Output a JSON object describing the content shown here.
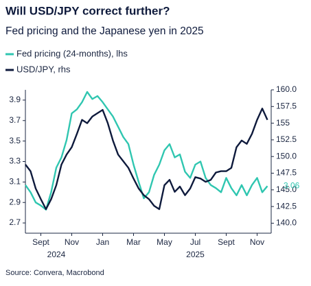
{
  "chart_data": {
    "type": "line",
    "title": "Will USD/JPY correct further?",
    "subtitle": "Fed pricing and the Japanese yen in 2025",
    "source": "Source: Convera, Macrobond",
    "categories": [
      null,
      null,
      null,
      "Sept",
      null,
      null,
      null,
      null,
      null,
      "Nov",
      null,
      null,
      null,
      null,
      null,
      "Jan",
      null,
      null,
      null,
      null,
      null,
      "Mar",
      null,
      null,
      null,
      null,
      null,
      "May",
      null,
      null,
      null,
      null,
      null,
      "Jul",
      null,
      null,
      null,
      null,
      null,
      "Sept",
      null,
      null,
      null,
      null,
      null,
      "Nov",
      null,
      null
    ],
    "year_labels": [
      null,
      null,
      null,
      null,
      null,
      null,
      "2024",
      null,
      null,
      null,
      null,
      null,
      null,
      null,
      null,
      null,
      null,
      null,
      null,
      null,
      null,
      null,
      null,
      null,
      null,
      null,
      null,
      null,
      null,
      null,
      null,
      null,
      null,
      "2025",
      null,
      null,
      null,
      null,
      null,
      null,
      null,
      null,
      null,
      null,
      null,
      null,
      null,
      null
    ],
    "series": [
      {
        "name": "Fed pricing (24-months), lhs",
        "color": "#2fc6b0",
        "label_last": true,
        "values": [
          3.07,
          3.0,
          2.9,
          2.87,
          2.83,
          3.0,
          3.24,
          3.34,
          3.51,
          3.77,
          3.81,
          3.88,
          3.98,
          3.91,
          3.94,
          3.88,
          3.81,
          3.74,
          3.64,
          3.54,
          3.47,
          3.27,
          3.1,
          2.94,
          3.0,
          3.17,
          3.27,
          3.41,
          3.47,
          3.34,
          3.37,
          3.2,
          3.14,
          3.27,
          3.3,
          3.14,
          3.07,
          3.04,
          3.0,
          3.14,
          3.04,
          2.97,
          3.07,
          2.97,
          3.07,
          3.14,
          3.0,
          3.06
        ]
      },
      {
        "name": "USD/JPY, rhs",
        "color": "#0e1a3c",
        "axis": "y2",
        "values": [
          148.8,
          147.8,
          145.2,
          143.6,
          142.1,
          143.6,
          145.7,
          148.8,
          150.3,
          151.4,
          153.4,
          155.5,
          155.0,
          156.0,
          156.5,
          157.0,
          155.0,
          152.4,
          150.3,
          149.3,
          148.3,
          146.7,
          145.2,
          144.2,
          143.6,
          142.6,
          142.1,
          145.7,
          146.5,
          144.7,
          145.5,
          144.2,
          145.2,
          146.9,
          146.7,
          146.2,
          146.5,
          147.6,
          147.8,
          147.8,
          148.3,
          151.4,
          152.4,
          151.9,
          153.4,
          155.5,
          157.2,
          155.5
        ]
      }
    ],
    "ylim": [
      2.6,
      4.0
    ],
    "yticks": [
      2.7,
      2.9,
      3.1,
      3.3,
      3.5,
      3.7,
      3.9
    ],
    "y2lim": [
      138.5,
      160
    ],
    "y2ticks": [
      {
        "value": 140,
        "label": "140.0"
      },
      142.5,
      {
        "value": 145,
        "label": "145.0"
      },
      147.5,
      {
        "value": 150,
        "label": "150.0"
      },
      152.5,
      155,
      157.5,
      {
        "value": 160,
        "label": "160.0"
      }
    ],
    "grid": false
  }
}
